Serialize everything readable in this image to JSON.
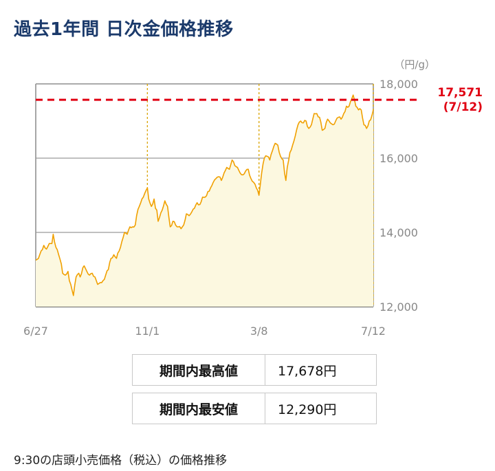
{
  "title": "過去1年間 日次金価格推移",
  "chart_data": {
    "type": "area",
    "unit": "（円/g）",
    "ylim": [
      12000,
      18000
    ],
    "yticks": [
      "12,000",
      "14,000",
      "16,000",
      "18,000"
    ],
    "xticks": [
      {
        "label": "6/27",
        "index": 0
      },
      {
        "label": "11/1",
        "index": 83
      },
      {
        "label": "3/8",
        "index": 166
      },
      {
        "label": "7/12",
        "index": 251
      }
    ],
    "grid": "horizontal solid, vertical dotted",
    "line_color": "#f0a000",
    "fill_color": "#fcf8e0",
    "reference": {
      "value": 17571,
      "label": "17,571",
      "date": "(7/12)",
      "color": "#e00012"
    },
    "keypoints": [
      [
        0,
        13250
      ],
      [
        2,
        13300
      ],
      [
        4,
        13500
      ],
      [
        6,
        13650
      ],
      [
        8,
        13550
      ],
      [
        10,
        13700
      ],
      [
        12,
        13700
      ],
      [
        13,
        13950
      ],
      [
        15,
        13600
      ],
      [
        17,
        13400
      ],
      [
        19,
        13150
      ],
      [
        20,
        12900
      ],
      [
        22,
        12850
      ],
      [
        24,
        12950
      ],
      [
        25,
        12700
      ],
      [
        26,
        12600
      ],
      [
        27,
        12450
      ],
      [
        28,
        12300
      ],
      [
        30,
        12800
      ],
      [
        32,
        12900
      ],
      [
        33,
        12800
      ],
      [
        35,
        13050
      ],
      [
        36,
        13100
      ],
      [
        38,
        12950
      ],
      [
        40,
        12850
      ],
      [
        42,
        12900
      ],
      [
        44,
        12800
      ],
      [
        46,
        12600
      ],
      [
        48,
        12650
      ],
      [
        50,
        12700
      ],
      [
        52,
        12850
      ],
      [
        54,
        13000
      ],
      [
        56,
        13300
      ],
      [
        58,
        13400
      ],
      [
        60,
        13300
      ],
      [
        62,
        13500
      ],
      [
        64,
        13750
      ],
      [
        66,
        14000
      ],
      [
        68,
        13950
      ],
      [
        70,
        14150
      ],
      [
        72,
        14150
      ],
      [
        74,
        14200
      ],
      [
        75,
        14450
      ],
      [
        77,
        14700
      ],
      [
        79,
        14900
      ],
      [
        81,
        15050
      ],
      [
        83,
        15200
      ],
      [
        84,
        14900
      ],
      [
        86,
        14700
      ],
      [
        88,
        14900
      ],
      [
        89,
        14650
      ],
      [
        90,
        14600
      ],
      [
        91,
        14300
      ],
      [
        92,
        14400
      ],
      [
        94,
        14600
      ],
      [
        96,
        14850
      ],
      [
        98,
        14700
      ],
      [
        99,
        14400
      ],
      [
        100,
        14150
      ],
      [
        102,
        14300
      ],
      [
        104,
        14200
      ],
      [
        106,
        14150
      ],
      [
        108,
        14100
      ],
      [
        110,
        14200
      ],
      [
        112,
        14500
      ],
      [
        114,
        14450
      ],
      [
        116,
        14550
      ],
      [
        118,
        14650
      ],
      [
        120,
        14800
      ],
      [
        122,
        14750
      ],
      [
        124,
        14950
      ],
      [
        126,
        14950
      ],
      [
        128,
        15100
      ],
      [
        130,
        15200
      ],
      [
        132,
        15350
      ],
      [
        134,
        15450
      ],
      [
        136,
        15500
      ],
      [
        138,
        15400
      ],
      [
        140,
        15600
      ],
      [
        142,
        15750
      ],
      [
        144,
        15700
      ],
      [
        146,
        15950
      ],
      [
        148,
        15800
      ],
      [
        150,
        15750
      ],
      [
        152,
        15600
      ],
      [
        154,
        15550
      ],
      [
        156,
        15650
      ],
      [
        158,
        15700
      ],
      [
        160,
        15450
      ],
      [
        162,
        15350
      ],
      [
        164,
        15200
      ],
      [
        166,
        15000
      ],
      [
        167,
        15300
      ],
      [
        168,
        15600
      ],
      [
        170,
        16000
      ],
      [
        172,
        16050
      ],
      [
        174,
        15950
      ],
      [
        176,
        16200
      ],
      [
        178,
        16400
      ],
      [
        180,
        16350
      ],
      [
        182,
        16050
      ],
      [
        184,
        15950
      ],
      [
        185,
        15600
      ],
      [
        186,
        15400
      ],
      [
        187,
        15750
      ],
      [
        189,
        16150
      ],
      [
        191,
        16350
      ],
      [
        193,
        16600
      ],
      [
        195,
        16900
      ],
      [
        197,
        17000
      ],
      [
        199,
        16950
      ],
      [
        201,
        17000
      ],
      [
        203,
        16800
      ],
      [
        205,
        16900
      ],
      [
        207,
        17200
      ],
      [
        209,
        17200
      ],
      [
        211,
        17100
      ],
      [
        213,
        16750
      ],
      [
        215,
        16800
      ],
      [
        217,
        17050
      ],
      [
        219,
        16950
      ],
      [
        221,
        16900
      ],
      [
        223,
        17000
      ],
      [
        225,
        17100
      ],
      [
        227,
        17050
      ],
      [
        229,
        17200
      ],
      [
        231,
        17400
      ],
      [
        233,
        17400
      ],
      [
        235,
        17600
      ],
      [
        236,
        17700
      ],
      [
        238,
        17400
      ],
      [
        240,
        17300
      ],
      [
        242,
        17300
      ],
      [
        244,
        16900
      ],
      [
        246,
        16800
      ],
      [
        248,
        17000
      ],
      [
        250,
        17150
      ],
      [
        251,
        17300
      ]
    ]
  },
  "stats": {
    "high_label": "期間内最高値",
    "high_value": "17,678円",
    "low_label": "期間内最安値",
    "low_value": "12,290円"
  },
  "footnote": "9:30の店頭小売価格（税込）の価格推移"
}
